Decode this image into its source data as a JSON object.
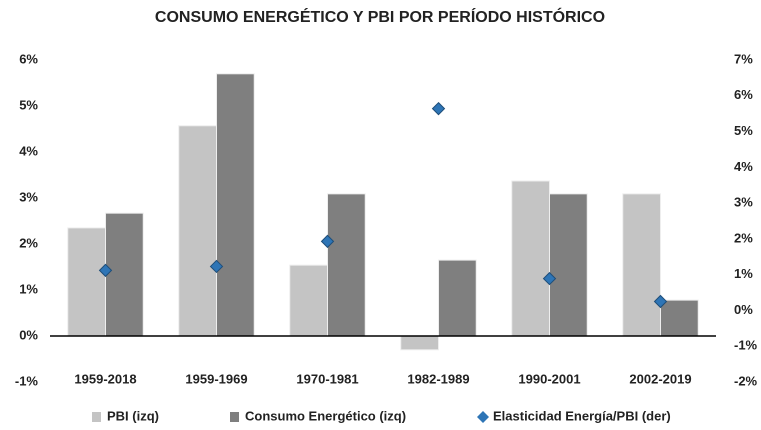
{
  "chart_data": {
    "type": "bar",
    "title": "CONSUMO ENERGÉTICO Y PBI POR PERÍODO HISTÓRICO",
    "categories": [
      "1959-2018",
      "1959-1969",
      "1970-1981",
      "1982-1989",
      "1990-2001",
      "2002-2019"
    ],
    "series": [
      {
        "name": "PBI (izq)",
        "color": "#c4c4c4",
        "type": "bar",
        "values": [
          2.35,
          4.57,
          1.54,
          -0.3,
          3.37,
          3.09
        ]
      },
      {
        "name": "Consumo Energético (izq)",
        "color": "#7f7f7f",
        "type": "bar",
        "values": [
          2.67,
          5.7,
          3.09,
          1.65,
          3.09,
          0.78
        ]
      },
      {
        "name": "Elasticidad Energía/PBI (der)",
        "color": "#2e75b6",
        "type": "scatter",
        "axis": "y2",
        "values": [
          1.12,
          1.23,
          1.93,
          5.64,
          0.89,
          0.25
        ]
      }
    ],
    "ylim": [
      -1,
      6
    ],
    "yticks": [
      {
        "value": -1,
        "label": "-1%"
      },
      {
        "value": 0,
        "label": "0%"
      },
      {
        "value": 1,
        "label": "1%"
      },
      {
        "value": 2,
        "label": "2%"
      },
      {
        "value": 3,
        "label": "3%"
      },
      {
        "value": 4,
        "label": "4%"
      },
      {
        "value": 5,
        "label": "5%"
      },
      {
        "value": 6,
        "label": "6%"
      }
    ],
    "y2lim": [
      -2,
      7
    ],
    "y2ticks": [
      {
        "value": -2,
        "label": "-2%"
      },
      {
        "value": -1,
        "label": "-1%"
      },
      {
        "value": 0,
        "label": "0%"
      },
      {
        "value": 1,
        "label": "1%"
      },
      {
        "value": 2,
        "label": "2%"
      },
      {
        "value": 3,
        "label": "3%"
      },
      {
        "value": 4,
        "label": "4%"
      },
      {
        "value": 5,
        "label": "5%"
      },
      {
        "value": 6,
        "label": "6%"
      },
      {
        "value": 7,
        "label": "7%"
      }
    ],
    "legend": "bottom"
  }
}
